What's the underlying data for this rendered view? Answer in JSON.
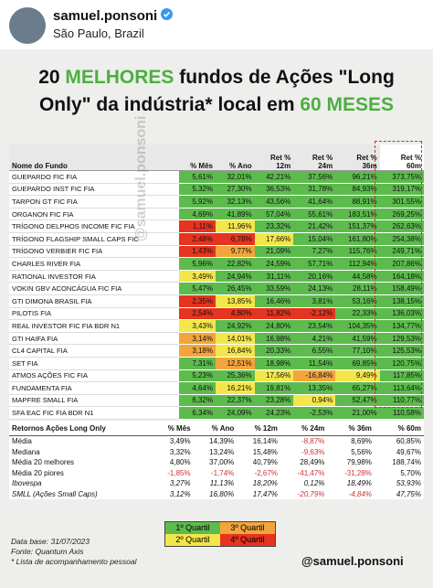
{
  "header": {
    "username": "samuel.ponsoni",
    "location": "São Paulo, Brazil"
  },
  "title": {
    "segments": [
      {
        "text": "20 ",
        "highlight": false
      },
      {
        "text": "MELHORES",
        "highlight": true
      },
      {
        "text": " fundos de Ações \"Long Only\" da indústria* local em ",
        "highlight": false
      },
      {
        "text": "60 MESES",
        "highlight": true
      }
    ]
  },
  "quartile_colors": {
    "1": "#5dbb4e",
    "2": "#f3e64a",
    "3": "#f2a53a",
    "4": "#e5341f"
  },
  "table": {
    "columns": [
      "Nome do Fundo",
      "% Mês",
      "% Ano",
      "Ret %\n12m",
      "Ret %\n24m",
      "Ret %\n36m",
      "Ret %\n60m"
    ],
    "rows": [
      {
        "name": "GUEPARDO FIC FIA",
        "cells": [
          "5,61%",
          "32,01%",
          "42,21%",
          "37,56%",
          "96,21%",
          "373,75%"
        ],
        "quartiles": [
          1,
          1,
          1,
          1,
          1,
          1
        ]
      },
      {
        "name": "GUEPARDO INST FIC FIA",
        "cells": [
          "5,32%",
          "27,30%",
          "36,53%",
          "31,78%",
          "84,93%",
          "319,17%"
        ],
        "quartiles": [
          1,
          1,
          1,
          1,
          1,
          1
        ]
      },
      {
        "name": "TARPON GT FIC FIA",
        "cells": [
          "5,92%",
          "32,13%",
          "43,56%",
          "41,64%",
          "88,91%",
          "301,55%"
        ],
        "quartiles": [
          1,
          1,
          1,
          1,
          1,
          1
        ]
      },
      {
        "name": "ORGANON FIC FIA",
        "cells": [
          "4,69%",
          "41,89%",
          "57,04%",
          "55,61%",
          "183,51%",
          "269,25%"
        ],
        "quartiles": [
          1,
          1,
          1,
          1,
          1,
          1
        ]
      },
      {
        "name": "TRÍGONO DELPHOS INCOME FIC FIA",
        "cells": [
          "1,11%",
          "11,96%",
          "23,32%",
          "21,42%",
          "151,37%",
          "262,63%"
        ],
        "quartiles": [
          4,
          2,
          1,
          1,
          1,
          1
        ]
      },
      {
        "name": "TRÍGONO FLAGSHIP SMALL CAPS FIC",
        "cells": [
          "2,48%",
          "6,78%",
          "17,66%",
          "15,04%",
          "161,80%",
          "254,38%"
        ],
        "quartiles": [
          4,
          4,
          2,
          1,
          1,
          1
        ]
      },
      {
        "name": "TRÍGONO VERBIER FIC FIA",
        "cells": [
          "1,43%",
          "9,77%",
          "21,09%",
          "7,27%",
          "115,76%",
          "249,71%"
        ],
        "quartiles": [
          4,
          3,
          1,
          1,
          1,
          1
        ]
      },
      {
        "name": "CHARLES RIVER FIA",
        "cells": [
          "5,96%",
          "22,82%",
          "24,59%",
          "57,71%",
          "112,94%",
          "207,86%"
        ],
        "quartiles": [
          1,
          1,
          1,
          1,
          1,
          1
        ]
      },
      {
        "name": "RATIONAL INVESTOR FIA",
        "cells": [
          "3,49%",
          "24,94%",
          "31,11%",
          "20,16%",
          "44,58%",
          "164,18%"
        ],
        "quartiles": [
          2,
          1,
          1,
          1,
          1,
          1
        ]
      },
      {
        "name": "VOKIN GBV ACONCÁGUA FIC FIA",
        "cells": [
          "5,47%",
          "26,45%",
          "33,59%",
          "24,13%",
          "28,11%",
          "158,49%"
        ],
        "quartiles": [
          1,
          1,
          1,
          1,
          1,
          1
        ]
      },
      {
        "name": "GTI DIMONA BRASIL FIA",
        "cells": [
          "2,35%",
          "13,85%",
          "16,46%",
          "3,81%",
          "53,16%",
          "138,15%"
        ],
        "quartiles": [
          4,
          2,
          1,
          1,
          1,
          1
        ]
      },
      {
        "name": "PILOTIS FIA",
        "cells": [
          "2,54%",
          "4,80%",
          "11,82%",
          "-2,12%",
          "22,33%",
          "136,03%"
        ],
        "quartiles": [
          4,
          4,
          4,
          4,
          1,
          1
        ]
      },
      {
        "name": "REAL INVESTOR FIC FIA BDR N1",
        "cells": [
          "3,43%",
          "24,92%",
          "24,80%",
          "23,54%",
          "104,35%",
          "134,77%"
        ],
        "quartiles": [
          2,
          1,
          1,
          1,
          1,
          1
        ]
      },
      {
        "name": "GTI HAIFA FIA",
        "cells": [
          "3,14%",
          "14,01%",
          "16,98%",
          "4,21%",
          "41,59%",
          "129,53%"
        ],
        "quartiles": [
          3,
          2,
          1,
          1,
          1,
          1
        ]
      },
      {
        "name": "CL4 CAPITAL FIA",
        "cells": [
          "3,18%",
          "16,84%",
          "20,33%",
          "6,55%",
          "77,10%",
          "125,53%"
        ],
        "quartiles": [
          3,
          2,
          1,
          1,
          1,
          1
        ]
      },
      {
        "name": "SET FIA",
        "cells": [
          "7,31%",
          "12,51%",
          "18,98%",
          "11,54%",
          "69,85%",
          "120,75%"
        ],
        "quartiles": [
          1,
          3,
          1,
          1,
          1,
          1
        ]
      },
      {
        "name": "ATMOS AÇÕES FIC FIA",
        "cells": [
          "5,23%",
          "25,36%",
          "17,56%",
          "-16,84%",
          "9,49%",
          "117,85%"
        ],
        "quartiles": [
          1,
          1,
          2,
          3,
          2,
          1
        ]
      },
      {
        "name": "FUNDAMENTA FIA",
        "cells": [
          "4,64%",
          "16,21%",
          "19,81%",
          "13,35%",
          "65,27%",
          "113,64%"
        ],
        "quartiles": [
          1,
          2,
          1,
          1,
          1,
          1
        ]
      },
      {
        "name": "MAPFRE SMALL FIA",
        "cells": [
          "6,32%",
          "22,37%",
          "23,28%",
          "0,94%",
          "52,47%",
          "110,77%"
        ],
        "quartiles": [
          1,
          1,
          1,
          2,
          1,
          1
        ]
      },
      {
        "name": "SFA EAC FIC FIA BDR N1",
        "cells": [
          "6,34%",
          "24,09%",
          "24,23%",
          "-2,53%",
          "21,00%",
          "110,58%"
        ],
        "quartiles": [
          1,
          1,
          1,
          1,
          1,
          1
        ]
      }
    ]
  },
  "summary": {
    "columns": [
      "Retornos Ações Long Only",
      "% Mês",
      "% Ano",
      "% 12m",
      "% 24m",
      "% 36m",
      "% 60m"
    ],
    "rows": [
      {
        "name": "Média",
        "cells": [
          "3,49%",
          "14,39%",
          "16,14%",
          "-8,87%",
          "8,69%",
          "60,85%"
        ],
        "italic": false
      },
      {
        "name": "Mediana",
        "cells": [
          "3,32%",
          "13,24%",
          "15,48%",
          "-9,63%",
          "5,56%",
          "49,67%"
        ],
        "italic": false
      },
      {
        "name": "Média 20 melhores",
        "cells": [
          "4,80%",
          "37,00%",
          "40,79%",
          "28,49%",
          "79,98%",
          "188,74%"
        ],
        "italic": false
      },
      {
        "name": "Média 20 piores",
        "cells": [
          "-1,85%",
          "-1,74%",
          "-2,67%",
          "-41,47%",
          "-31,28%",
          "5,70%"
        ],
        "italic": false
      },
      {
        "name": "Ibovespa",
        "cells": [
          "3,27%",
          "11,13%",
          "18,20%",
          "0,12%",
          "18,49%",
          "53,93%"
        ],
        "italic": true
      },
      {
        "name": "SMLL (Ações Small Caps)",
        "cells": [
          "3,12%",
          "16,80%",
          "17,47%",
          "-20,79%",
          "-4,84%",
          "47,75%"
        ],
        "italic": true
      }
    ]
  },
  "legend": [
    {
      "label": "1º Quartil",
      "quartile": 1
    },
    {
      "label": "3º Quartil",
      "quartile": 3
    },
    {
      "label": "2º Quartil",
      "quartile": 2
    },
    {
      "label": "4º Quartil",
      "quartile": 4
    }
  ],
  "footnotes": [
    "Data base: 31/07/2023",
    "Fonte: Quantum Axis",
    "*  Lista de acompanhamento pessoal"
  ],
  "watermark": "@samuel.ponsoni",
  "handle": "@samuel.ponsoni"
}
